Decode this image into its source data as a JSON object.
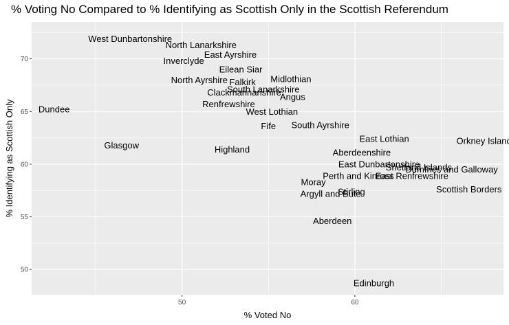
{
  "chart_data": {
    "type": "scatter",
    "title": "% Voting No Compared to % Identifying as Scottish Only in the Scottish Referendum",
    "xlabel": "% Voted No",
    "ylabel": "% Identifying as Scottish Only",
    "xlim": [
      41.3,
      68.6
    ],
    "ylim": [
      47.6,
      73.5
    ],
    "x_ticks": [
      50,
      60
    ],
    "y_ticks": [
      50,
      55,
      60,
      65,
      70
    ],
    "grid": true,
    "background": "#EBEBEB",
    "gridline_color": "#FFFFFF",
    "points": [
      {
        "label": "West Dunbartonshire",
        "x": 47.0,
        "y": 71.9
      },
      {
        "label": "North Lanarkshire",
        "x": 51.1,
        "y": 71.3
      },
      {
        "label": "Inverclyde",
        "x": 50.1,
        "y": 69.8
      },
      {
        "label": "East Ayrshire",
        "x": 52.8,
        "y": 70.4
      },
      {
        "label": "Eilean Siar",
        "x": 53.4,
        "y": 69.0
      },
      {
        "label": "Midlothian",
        "x": 56.3,
        "y": 68.1
      },
      {
        "label": "North Ayrshire",
        "x": 51.0,
        "y": 68.0
      },
      {
        "label": "Falkirk",
        "x": 53.5,
        "y": 67.8
      },
      {
        "label": "South Lanarkshire",
        "x": 54.7,
        "y": 67.1
      },
      {
        "label": "Clackmannanshire",
        "x": 53.6,
        "y": 66.8
      },
      {
        "label": "Angus",
        "x": 56.4,
        "y": 66.4
      },
      {
        "label": "Renfrewshire",
        "x": 52.7,
        "y": 65.7
      },
      {
        "label": "Dundee",
        "x": 42.6,
        "y": 65.2
      },
      {
        "label": "West Lothian",
        "x": 55.2,
        "y": 65.0
      },
      {
        "label": "South Ayrshire",
        "x": 58.0,
        "y": 63.7
      },
      {
        "label": "Fife",
        "x": 55.0,
        "y": 63.6
      },
      {
        "label": "East Lothian",
        "x": 61.7,
        "y": 62.4
      },
      {
        "label": "Orkney Islands",
        "x": 67.6,
        "y": 62.2
      },
      {
        "label": "Glasgow",
        "x": 46.5,
        "y": 61.8
      },
      {
        "label": "Highland",
        "x": 52.9,
        "y": 61.4
      },
      {
        "label": "Aberdeenshire",
        "x": 60.4,
        "y": 61.1
      },
      {
        "label": "East Dunbartonshire",
        "x": 61.4,
        "y": 60.0
      },
      {
        "label": "Shetland Islands",
        "x": 63.7,
        "y": 59.7
      },
      {
        "label": "Dumfries and Galloway",
        "x": 65.6,
        "y": 59.5
      },
      {
        "label": "Perth and Kinross",
        "x": 60.2,
        "y": 58.9
      },
      {
        "label": "East Renfrewshire",
        "x": 63.3,
        "y": 58.9
      },
      {
        "label": "Moray",
        "x": 57.6,
        "y": 58.3
      },
      {
        "label": "Scottish Borders",
        "x": 66.6,
        "y": 57.6
      },
      {
        "label": "Stirling",
        "x": 59.8,
        "y": 57.4
      },
      {
        "label": "Argyll and Bute",
        "x": 58.6,
        "y": 57.2
      },
      {
        "label": "Aberdeen",
        "x": 58.7,
        "y": 54.6
      },
      {
        "label": "Edinburgh",
        "x": 61.1,
        "y": 48.7
      }
    ]
  }
}
